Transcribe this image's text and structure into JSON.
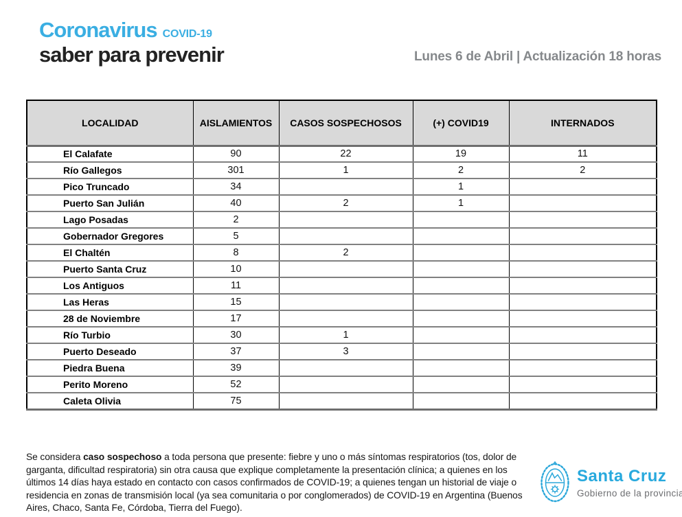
{
  "colors": {
    "accent_blue": "#3aaee2",
    "logo_blue": "#28a9dd",
    "title_dark": "#232323",
    "date_gray": "#85888b",
    "table_header_bg": "#d9d9d9",
    "row_line_gray": "#808080",
    "border_black": "#000000"
  },
  "header": {
    "brand_title": "Coronavirus",
    "brand_covid": "COVID-19",
    "tagline": "saber para prevenir",
    "update_text": "Lunes 6 de Abril | Actualización 18 horas"
  },
  "table": {
    "columns": [
      "LOCALIDAD",
      "AISLAMIENTOS",
      "CASOS SOSPECHOSOS",
      "(+) COVID19",
      "INTERNADOS"
    ],
    "rows": [
      [
        "El Calafate",
        "90",
        "22",
        "19",
        "11"
      ],
      [
        "Río Gallegos",
        "301",
        "1",
        "2",
        "2"
      ],
      [
        "Pico Truncado",
        "34",
        "",
        "1",
        ""
      ],
      [
        "Puerto San Julián",
        "40",
        "2",
        "1",
        ""
      ],
      [
        "Lago Posadas",
        "2",
        "",
        "",
        ""
      ],
      [
        "Gobernador Gregores",
        "5",
        "",
        "",
        ""
      ],
      [
        "El Chaltén",
        "8",
        "2",
        "",
        ""
      ],
      [
        "Puerto Santa Cruz",
        "10",
        "",
        "",
        ""
      ],
      [
        "Los Antiguos",
        "11",
        "",
        "",
        ""
      ],
      [
        "Las Heras",
        "15",
        "",
        "",
        ""
      ],
      [
        "28 de Noviembre",
        "17",
        "",
        "",
        ""
      ],
      [
        "Río Turbio",
        "30",
        "1",
        "",
        ""
      ],
      [
        "Puerto Deseado",
        "37",
        "3",
        "",
        ""
      ],
      [
        "Piedra Buena",
        "39",
        "",
        "",
        ""
      ],
      [
        "Perito Moreno",
        "52",
        "",
        "",
        ""
      ],
      [
        "Caleta Olivia",
        "75",
        "",
        "",
        ""
      ]
    ]
  },
  "footer": {
    "note_prefix": "Se considera ",
    "note_bold": "caso sospechoso",
    "note_rest": " a toda persona que presente: fiebre y uno o más síntomas respiratorios (tos, dolor de\ngarganta, dificultad respiratoria) sin otra causa que explique completamente la presentación clínica; a quienes en los\núltimos 14 días haya estado en contacto con casos confirmados de COVID-19; a quienes tengan un historial de viaje o\nresidencia en zonas de transmisión local (ya sea comunitaria o por conglomerados) de COVID-19 en Argentina (Buenos\nAires, Chaco, Santa Fe, Córdoba, Tierra del Fuego).",
    "logo_title": "Santa Cruz",
    "logo_subtitle": "Gobierno de la provincia"
  }
}
